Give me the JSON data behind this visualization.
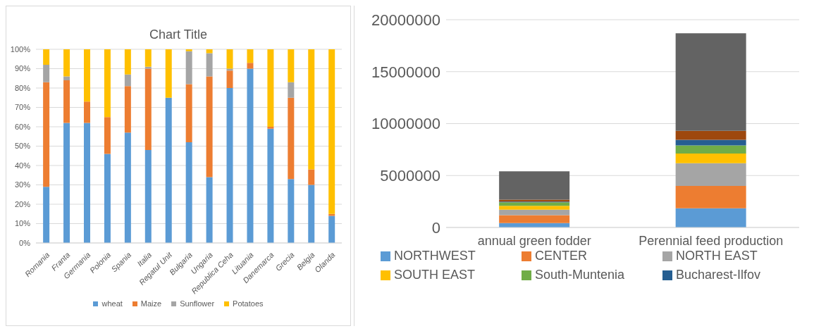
{
  "chart_data": [
    {
      "type": "bar",
      "title": "Chart Title",
      "stacked": true,
      "categories": [
        "Romania",
        "Franta",
        "Germania",
        "Polonia",
        "Spania",
        "Italia",
        "Regatul Unit",
        "Bulgaria",
        "Ungaria",
        "Republica Ceha",
        "Lituania",
        "Danemarca",
        "Grecia",
        "Belgia",
        "Olanda"
      ],
      "series": [
        {
          "name": "wheat",
          "color": "#5b9bd5",
          "values": [
            29,
            62,
            62,
            46,
            57,
            48,
            75,
            52,
            34,
            80,
            90,
            59,
            33,
            30,
            14
          ]
        },
        {
          "name": "Maize",
          "color": "#ed7d31",
          "values": [
            54,
            22,
            11,
            19,
            24,
            42,
            0,
            30,
            52,
            9,
            3,
            1,
            42,
            8,
            1
          ]
        },
        {
          "name": "Sunflower",
          "color": "#a5a5a5",
          "values": [
            9,
            2,
            0,
            0,
            6,
            1,
            0,
            17,
            12,
            1,
            0,
            0,
            8,
            0,
            0
          ]
        },
        {
          "name": "Potatoes",
          "color": "#ffc000",
          "values": [
            8,
            14,
            27,
            35,
            13,
            9,
            25,
            1,
            2,
            10,
            7,
            40,
            17,
            62,
            85
          ]
        }
      ],
      "ylim": [
        0,
        100
      ],
      "yticks": [
        {
          "value": 0,
          "label": "0%"
        },
        {
          "value": 10,
          "label": "10%"
        },
        {
          "value": 20,
          "label": "20%"
        },
        {
          "value": 30,
          "label": "30%"
        },
        {
          "value": 40,
          "label": "40%"
        },
        {
          "value": 50,
          "label": "50%"
        },
        {
          "value": 60,
          "label": "60%"
        },
        {
          "value": 70,
          "label": "70%"
        },
        {
          "value": 80,
          "label": "80%"
        },
        {
          "value": 90,
          "label": "90%"
        },
        {
          "value": 100,
          "label": "100%"
        }
      ],
      "grid": "y",
      "legend": "bottom"
    },
    {
      "type": "bar",
      "stacked": true,
      "categories": [
        "annual green fodder",
        "Perennial feed production"
      ],
      "series": [
        {
          "name": "NORTHWEST",
          "color": "#5b9bd5",
          "values": [
            420000,
            1840000
          ]
        },
        {
          "name": "CENTER",
          "color": "#ed7d31",
          "values": [
            760000,
            2160000
          ]
        },
        {
          "name": "NORTH EAST",
          "color": "#a5a5a5",
          "values": [
            540000,
            2180000
          ]
        },
        {
          "name": "SOUTH EAST",
          "color": "#ffc000",
          "values": [
            370000,
            940000
          ]
        },
        {
          "name": "South-Muntenia",
          "color": "#70ad47",
          "values": [
            340000,
            780000
          ]
        },
        {
          "name": "Bucharest-Ilfov",
          "color": "#255e91",
          "values": [
            70000,
            540000
          ]
        },
        {
          "color": "#9e480e",
          "values": [
            170000,
            860000
          ]
        },
        {
          "color": "#636363",
          "values": [
            2730000,
            9400000
          ]
        }
      ],
      "ylim": [
        0,
        20000000
      ],
      "yticks": [
        0,
        5000000,
        10000000,
        15000000,
        20000000
      ],
      "grid": "y",
      "legend": "bottom"
    }
  ]
}
